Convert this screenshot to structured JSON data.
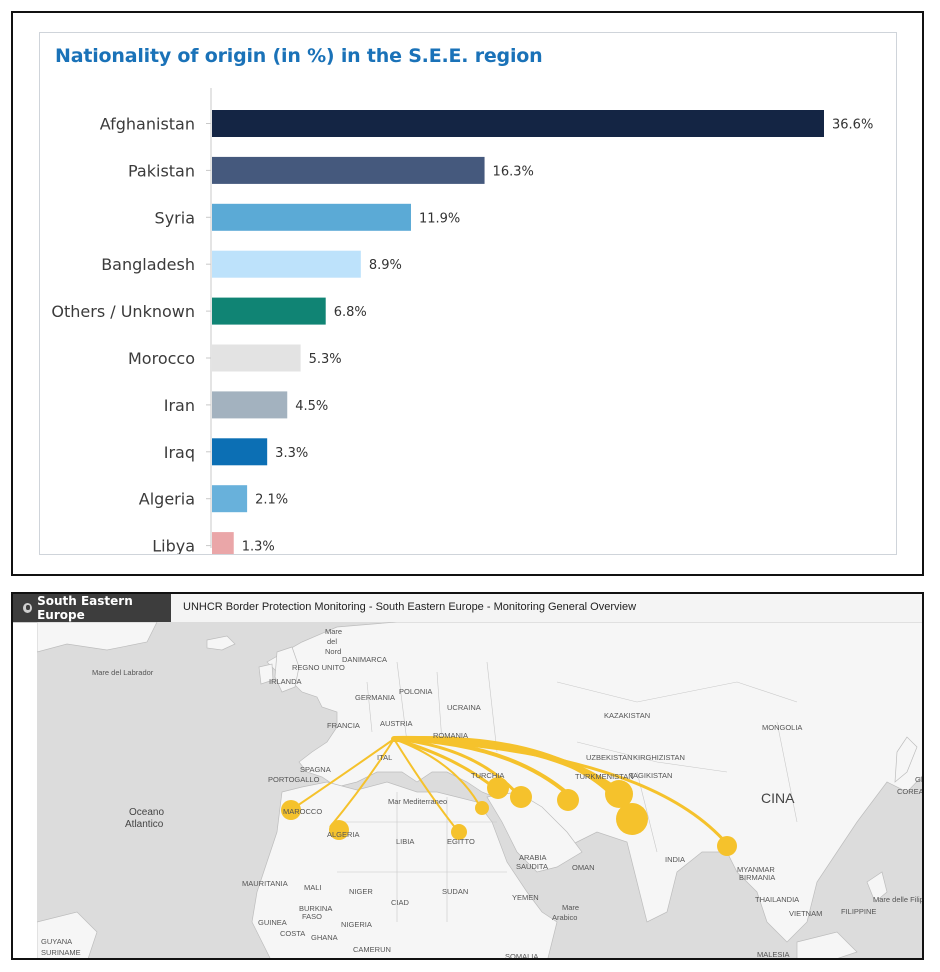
{
  "chart_data": {
    "type": "bar",
    "orientation": "horizontal",
    "title": "Nationality of origin (in %) in the S.E.E. region",
    "categories": [
      "Afghanistan",
      "Pakistan",
      "Syria",
      "Bangladesh",
      "Others / Unknown",
      "Morocco",
      "Iran",
      "Iraq",
      "Algeria",
      "Libya"
    ],
    "values": [
      36.6,
      16.3,
      11.9,
      8.9,
      6.8,
      5.3,
      4.5,
      3.3,
      2.1,
      1.3
    ],
    "value_labels": [
      "36.6%",
      "16.3%",
      "11.9%",
      "8.9%",
      "6.8%",
      "5.3%",
      "4.5%",
      "3.3%",
      "2.1%",
      "1.3%"
    ],
    "colors": [
      "#142544",
      "#45597d",
      "#5baad6",
      "#bde2fb",
      "#108474",
      "#e3e3e3",
      "#a3b2bf",
      "#0c6fb4",
      "#68b1db",
      "#eaa6a8"
    ],
    "xlim": [
      0,
      36.6
    ],
    "grid": false,
    "legend": "none"
  },
  "map": {
    "region_tab": "South Eastern Europe",
    "title": "UNHCR Border Protection Monitoring - South Eastern Europe - Monitoring General Overview",
    "accent": "#f5c22c",
    "labels": {
      "mare_del_labrador": "Mare del Labrador",
      "mare_del_nord_1": "Mare",
      "mare_del_nord_2": "del",
      "mare_del_nord_3": "Nord",
      "danimarca": "DANIMARCA",
      "regno_unito": "REGNO UNITO",
      "irlanda": "IRLANDA",
      "germania": "GERMANIA",
      "polonia": "POLONIA",
      "ucraina": "UCRAINA",
      "francia": "FRANCIA",
      "austria": "AUSTRIA",
      "romania": "ROMANIA",
      "kazakistan": "KAZAKISTAN",
      "mongolia": "MONGOLIA",
      "spagna": "SPAGNA",
      "portogallo": "PORTOGALLO",
      "italia": "ITAL",
      "turchia": "TURCHIA",
      "uzbekistan": "UZBEKISTAN",
      "kirghizistan": "KIRGHIZISTAN",
      "turkmenistan": "TURKMENISTAN",
      "tagikistan": "TAGIKISTAN",
      "mare_mediterraneo": "Mar Mediterraneo",
      "cina": "CINA",
      "giappone": "GIAPP",
      "corea_del_sud": "COREA DEL SUD",
      "oceano_1": "Oceano",
      "oceano_2": "Atlantico",
      "marocco": "MAROCCO",
      "algeria": "ALGERIA",
      "libia": "LIBIA",
      "egitto": "EGITTO",
      "arabia_1": "ARABIA",
      "arabia_2": "SAUDITA",
      "oman": "OMAN",
      "india": "INDIA",
      "myanmar": "MYANMAR",
      "birmania": "BIRMANIA",
      "thailandia": "THAILANDIA",
      "vietnam": "VIETNAM",
      "filippine": "FILIPPINE",
      "mare_delle_filippine": "Mare delle Filipp",
      "mauritania": "MAURITANIA",
      "mali": "MALI",
      "niger": "NIGER",
      "ciad": "CIAD",
      "sudan": "SUDAN",
      "yemen": "YEMEN",
      "mare_arabico_1": "Mare",
      "mare_arabico_2": "Arabico",
      "burkina_1": "BURKINA",
      "burkina_2": "FASO",
      "guinea": "GUINEA",
      "nigeria": "NIGERIA",
      "costa_avorio": "COSTA",
      "ghana": "GHANA",
      "camerun": "CAMERUN",
      "guyana": "GUYANA",
      "suriname": "SURINAME",
      "somalia": "SOMALIA",
      "malesia": "MALESIA"
    }
  }
}
